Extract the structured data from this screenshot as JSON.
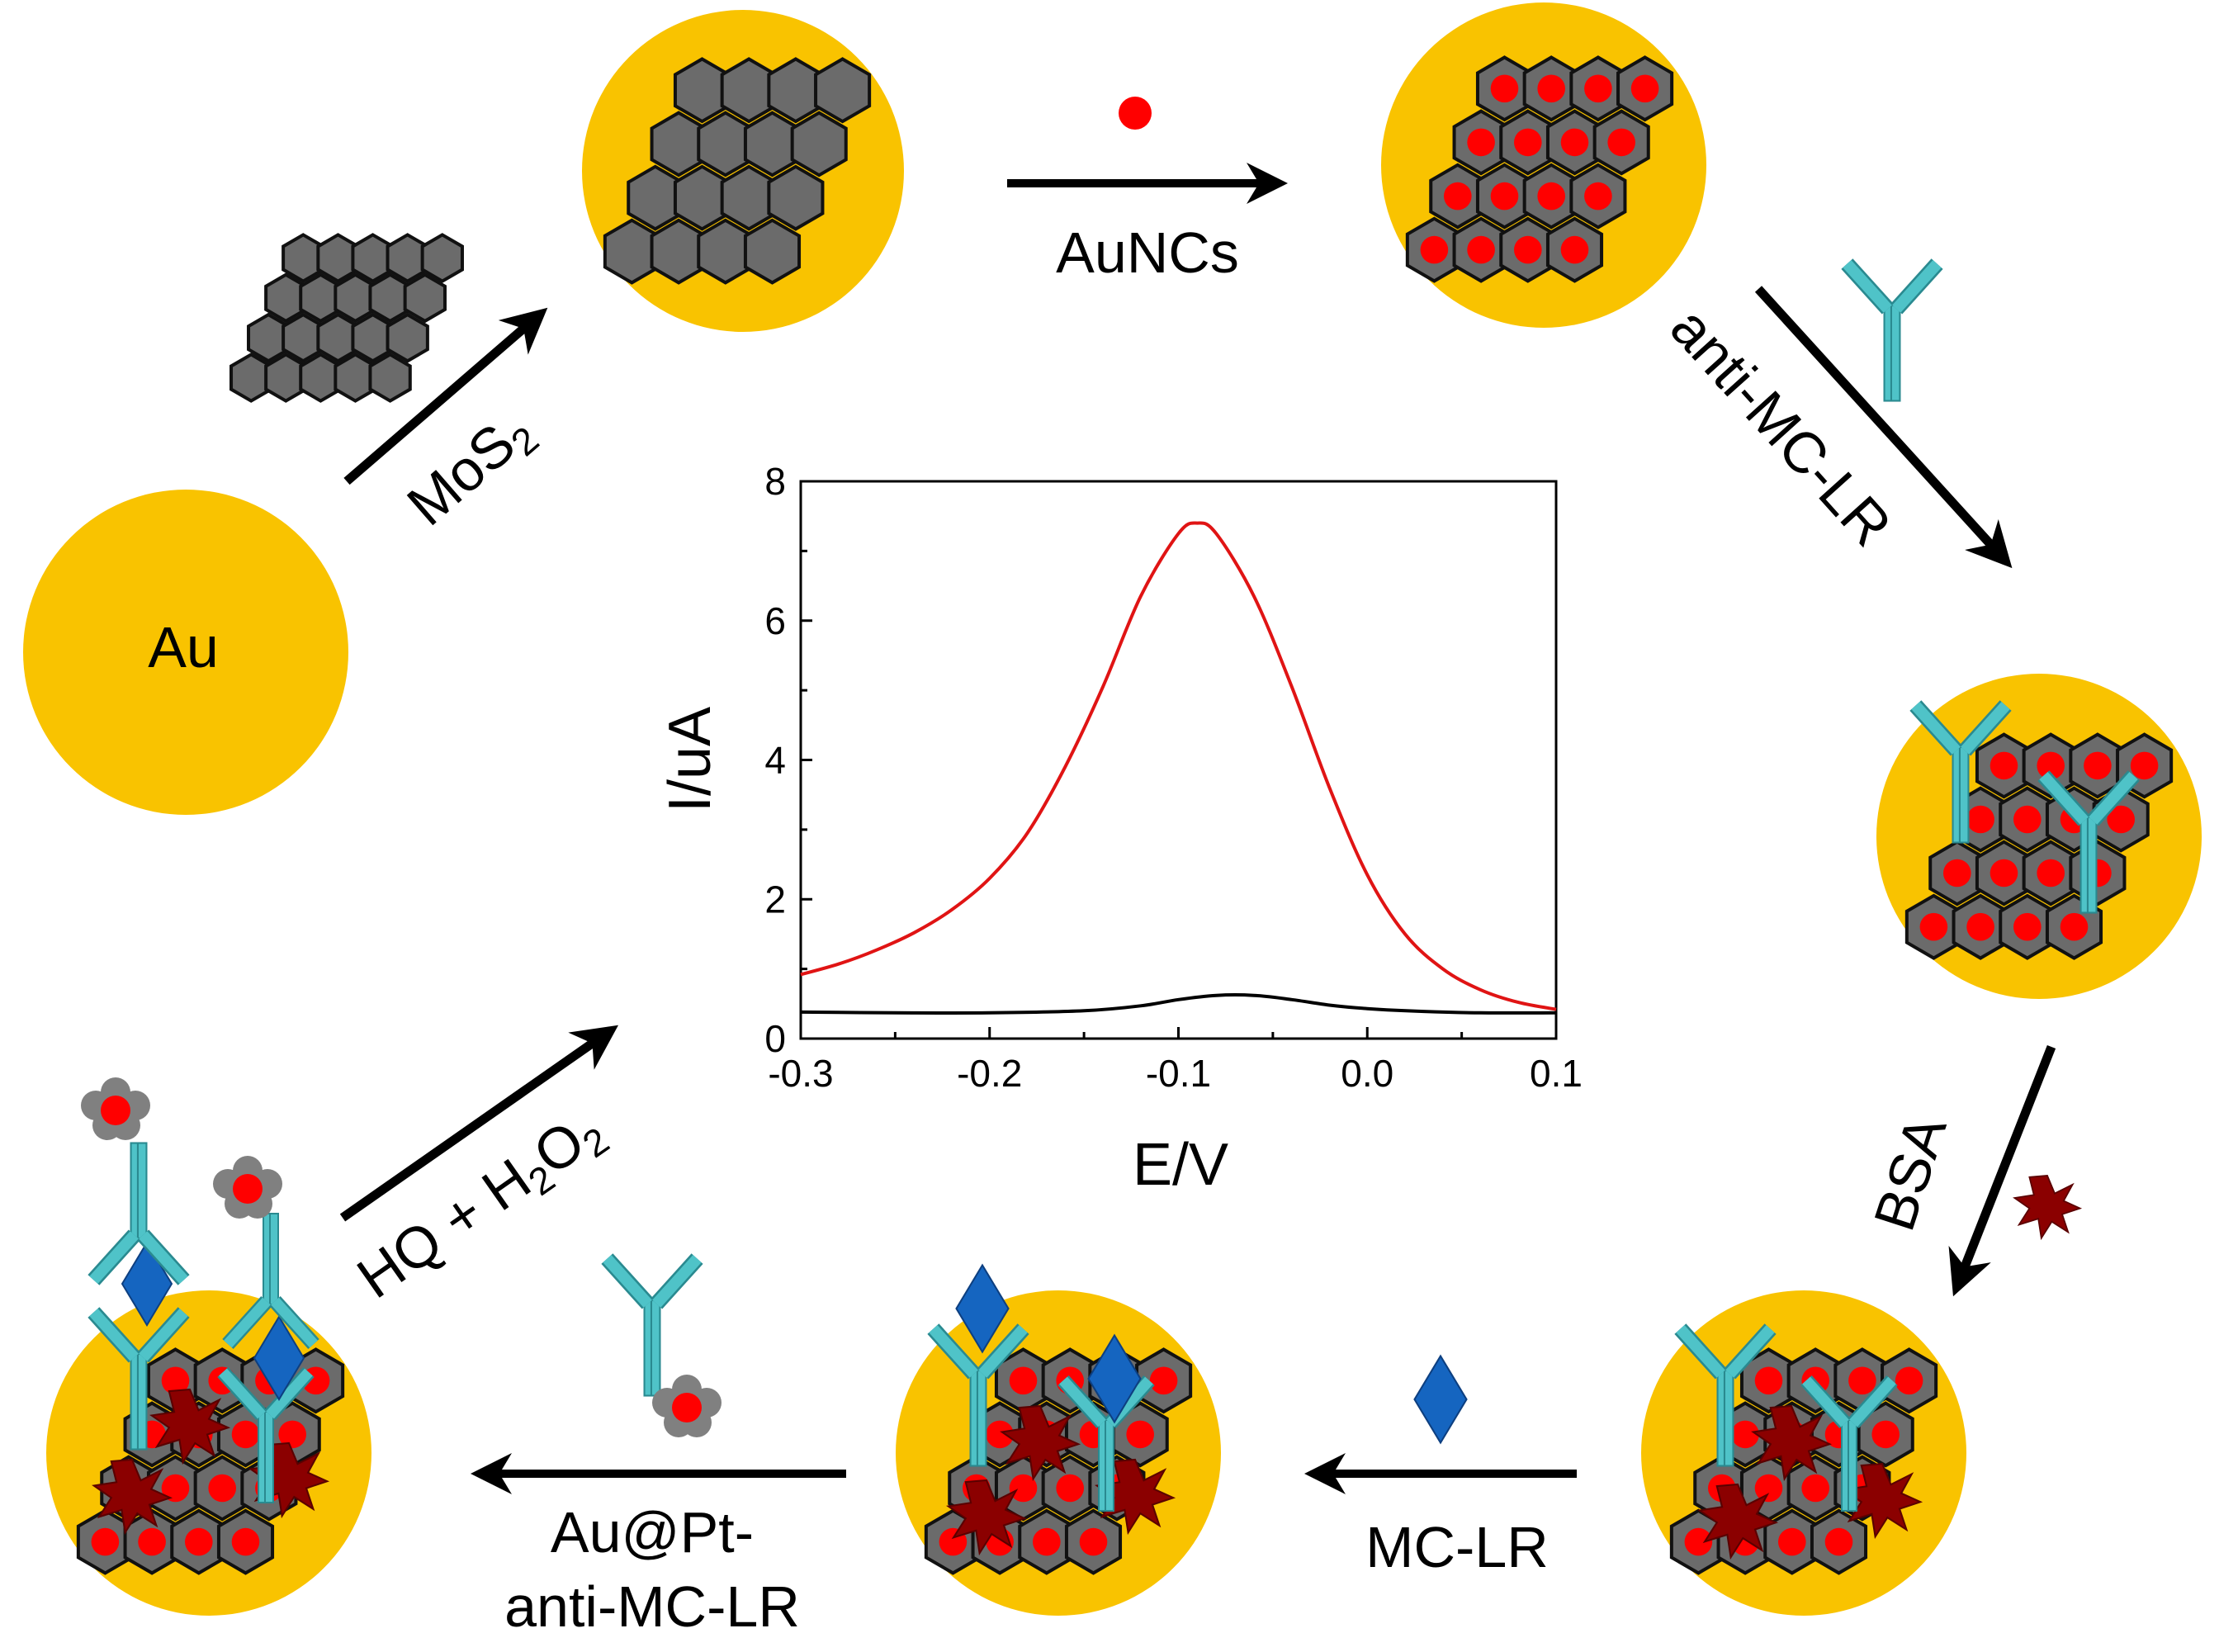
{
  "colors": {
    "gold": "#F9C300",
    "hex_fill": "#6B6B6B",
    "antibody": "#4FC3C8",
    "dot": "#FF0000",
    "bsa": "#8B0000",
    "diamond": "#1565C0",
    "curve_red": "#E01414",
    "curve_black": "#000000"
  },
  "labels": {
    "au": "Au",
    "mos2": "MoS",
    "mos2_sub": "2",
    "auncs": "AuNCs",
    "anti_mc_lr": "anti-MC-LR",
    "bsa": "BSA",
    "mc_lr": "MC-LR",
    "aupt_line1": "Au@Pt-",
    "aupt_line2": "anti-MC-LR",
    "hq_part1": "HQ + H",
    "hq_sub1": "2",
    "hq_part2": "O",
    "hq_sub2": "2"
  },
  "icons": [
    "gold-electrode",
    "mos2-sheet-icon",
    "aunc-dot-icon",
    "antibody-icon",
    "bsa-star-icon",
    "mc-lr-diamond-icon",
    "au-pt-nanoparticle-icon"
  ],
  "chart_data": {
    "type": "line",
    "xlabel": "E/V",
    "ylabel": "I/uA",
    "xlim": [
      -0.3,
      0.1
    ],
    "ylim": [
      0,
      8
    ],
    "xticks": [
      -0.3,
      -0.2,
      -0.1,
      0.0,
      0.1
    ],
    "xtick_labels": [
      "-0.3",
      "-0.2",
      "-0.1",
      "0.0",
      "0.1"
    ],
    "yticks": [
      0,
      2,
      4,
      6,
      8
    ],
    "ytick_labels": [
      "0",
      "2",
      "4",
      "6",
      "8"
    ],
    "grid": false,
    "series": [
      {
        "color": "#E01414",
        "x": [
          -0.3,
          -0.28,
          -0.26,
          -0.24,
          -0.22,
          -0.2,
          -0.18,
          -0.16,
          -0.14,
          -0.12,
          -0.1,
          -0.09,
          -0.08,
          -0.06,
          -0.04,
          -0.02,
          0.0,
          0.02,
          0.04,
          0.06,
          0.08,
          0.1
        ],
        "y": [
          0.92,
          1.07,
          1.27,
          1.52,
          1.85,
          2.3,
          2.95,
          3.9,
          5.05,
          6.35,
          7.25,
          7.4,
          7.25,
          6.35,
          5.05,
          3.6,
          2.35,
          1.5,
          1.0,
          0.7,
          0.52,
          0.42
        ]
      },
      {
        "color": "#000000",
        "x": [
          -0.3,
          -0.25,
          -0.2,
          -0.15,
          -0.12,
          -0.1,
          -0.08,
          -0.06,
          -0.04,
          -0.02,
          0.0,
          0.03,
          0.06,
          0.1
        ],
        "y": [
          0.38,
          0.37,
          0.37,
          0.4,
          0.47,
          0.56,
          0.62,
          0.62,
          0.56,
          0.48,
          0.43,
          0.39,
          0.37,
          0.37
        ]
      }
    ]
  }
}
